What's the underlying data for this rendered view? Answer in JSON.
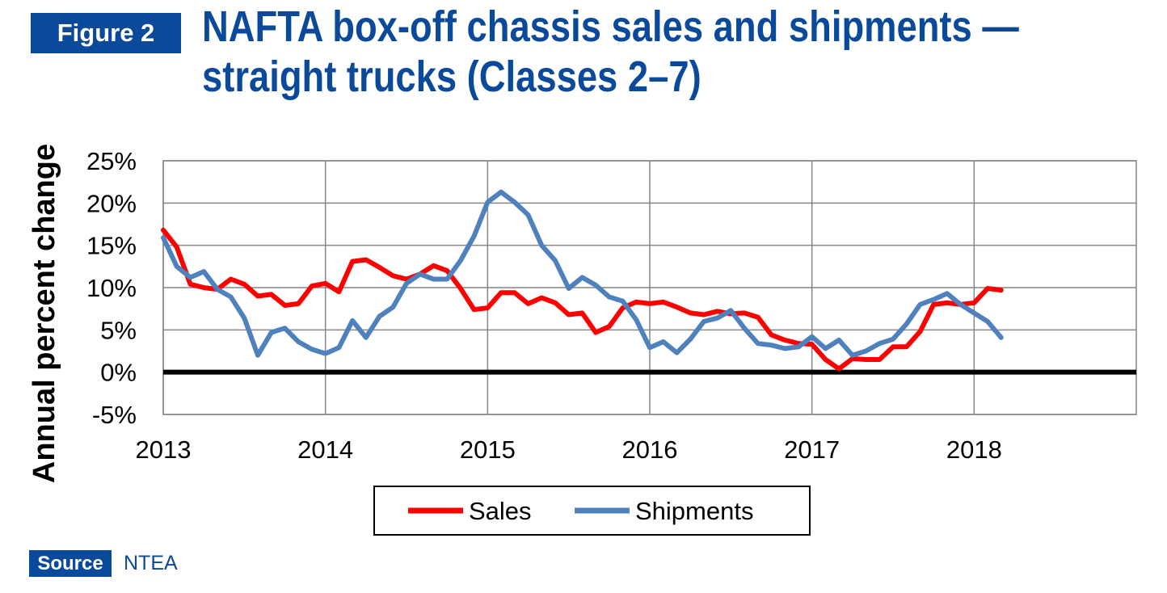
{
  "figure_label": "Figure 2",
  "title": {
    "line1": "NAFTA box-off chassis sales and shipments —",
    "line2": "straight trucks (Classes 2–7)"
  },
  "source": {
    "label": "Source",
    "text": "NTEA"
  },
  "colors": {
    "brand": "#0b4a9a",
    "sales": "#ff0000",
    "shipments": "#4f81bd"
  },
  "chart_data": {
    "type": "line",
    "title": "NAFTA box-off chassis sales and shipments — straight trucks (Classes 2–7)",
    "xlabel": "",
    "ylabel": "Annual percent change",
    "xlim": [
      2013,
      2019
    ],
    "ylim": [
      -5,
      25
    ],
    "x_ticks": [
      2013,
      2014,
      2015,
      2016,
      2017,
      2018
    ],
    "x_tick_labels": [
      "2013",
      "2014",
      "2015",
      "2016",
      "2017",
      "2018"
    ],
    "y_ticks": [
      -5,
      0,
      5,
      10,
      15,
      20,
      25
    ],
    "y_tick_labels": [
      "-5%",
      "0%",
      "5%",
      "10%",
      "15%",
      "20%",
      "25%"
    ],
    "grid": true,
    "legend_position": "bottom",
    "series": [
      {
        "name": "Sales",
        "x": [
          2013.0,
          2013.0833,
          2013.1667,
          2013.25,
          2013.3333,
          2013.4167,
          2013.5,
          2013.5833,
          2013.6667,
          2013.75,
          2013.8333,
          2013.9167,
          2014.0,
          2014.0833,
          2014.1667,
          2014.25,
          2014.3333,
          2014.4167,
          2014.5,
          2014.5833,
          2014.6667,
          2014.75,
          2014.8333,
          2014.9167,
          2015.0,
          2015.0833,
          2015.1667,
          2015.25,
          2015.3333,
          2015.4167,
          2015.5,
          2015.5833,
          2015.6667,
          2015.75,
          2015.8333,
          2015.9167,
          2016.0,
          2016.0833,
          2016.1667,
          2016.25,
          2016.3333,
          2016.4167,
          2016.5,
          2016.5833,
          2016.6667,
          2016.75,
          2016.8333,
          2016.9167,
          2017.0,
          2017.0833,
          2017.1667,
          2017.25,
          2017.3333,
          2017.4167,
          2017.5,
          2017.5833,
          2017.6667,
          2017.75,
          2017.8333,
          2017.9167,
          2018.0,
          2018.0833,
          2018.1667
        ],
        "values": [
          16.8,
          14.8,
          10.4,
          10.0,
          9.8,
          11.0,
          10.4,
          9.0,
          9.2,
          7.9,
          8.1,
          10.2,
          10.5,
          9.5,
          13.1,
          13.3,
          12.4,
          11.4,
          11.0,
          11.6,
          12.6,
          12.0,
          9.9,
          7.4,
          7.6,
          9.4,
          9.4,
          8.1,
          8.8,
          8.2,
          6.8,
          7.0,
          4.7,
          5.4,
          7.6,
          8.3,
          8.1,
          8.3,
          7.7,
          7.0,
          6.8,
          7.2,
          6.9,
          7.0,
          6.5,
          4.4,
          3.8,
          3.4,
          3.3,
          1.5,
          0.4,
          1.6,
          1.5,
          1.5,
          3.0,
          3.0,
          4.8,
          8.0,
          8.2,
          8.0,
          8.2,
          9.9,
          9.7
        ]
      },
      {
        "name": "Shipments",
        "x": [
          2013.0,
          2013.0833,
          2013.1667,
          2013.25,
          2013.3333,
          2013.4167,
          2013.5,
          2013.5833,
          2013.6667,
          2013.75,
          2013.8333,
          2013.9167,
          2014.0,
          2014.0833,
          2014.1667,
          2014.25,
          2014.3333,
          2014.4167,
          2014.5,
          2014.5833,
          2014.6667,
          2014.75,
          2014.8333,
          2014.9167,
          2015.0,
          2015.0833,
          2015.1667,
          2015.25,
          2015.3333,
          2015.4167,
          2015.5,
          2015.5833,
          2015.6667,
          2015.75,
          2015.8333,
          2015.9167,
          2016.0,
          2016.0833,
          2016.1667,
          2016.25,
          2016.3333,
          2016.4167,
          2016.5,
          2016.5833,
          2016.6667,
          2016.75,
          2016.8333,
          2016.9167,
          2017.0,
          2017.0833,
          2017.1667,
          2017.25,
          2017.3333,
          2017.4167,
          2017.5,
          2017.5833,
          2017.6667,
          2017.75,
          2017.8333,
          2017.9167,
          2018.0,
          2018.0833,
          2018.1667
        ],
        "values": [
          15.9,
          12.5,
          11.2,
          11.9,
          9.8,
          8.9,
          6.4,
          2.0,
          4.7,
          5.2,
          3.6,
          2.7,
          2.2,
          2.9,
          6.1,
          4.1,
          6.6,
          7.7,
          10.5,
          11.6,
          11.0,
          11.0,
          13.2,
          16.1,
          20.1,
          21.3,
          20.1,
          18.6,
          15.0,
          13.2,
          9.9,
          11.2,
          10.3,
          8.9,
          8.4,
          6.2,
          2.9,
          3.6,
          2.3,
          3.9,
          6.0,
          6.4,
          7.3,
          5.2,
          3.4,
          3.2,
          2.8,
          3.0,
          4.2,
          2.8,
          3.8,
          2.0,
          2.5,
          3.4,
          3.9,
          5.7,
          8.0,
          8.6,
          9.3,
          8.0,
          7.0,
          6.0,
          4.1
        ]
      }
    ]
  },
  "legend": {
    "sales_label": "Sales",
    "shipments_label": "Shipments"
  }
}
